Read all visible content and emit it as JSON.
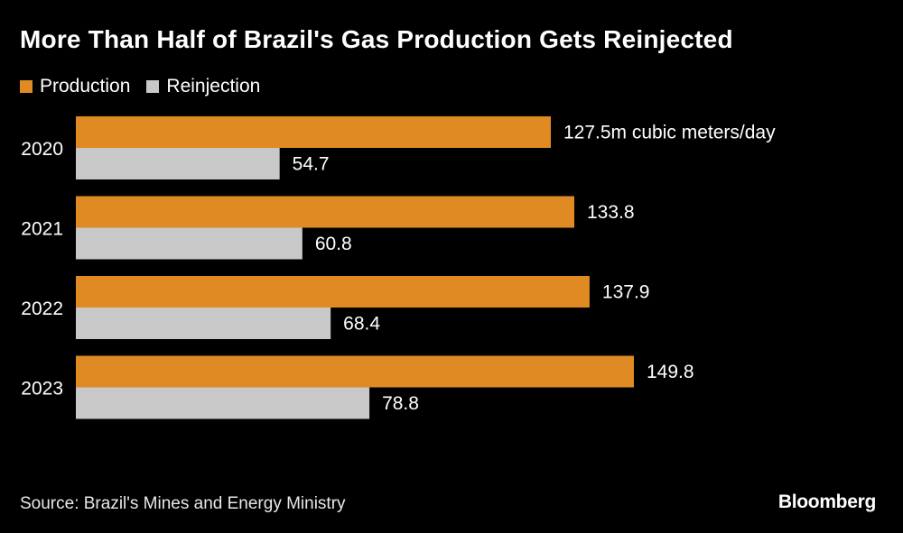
{
  "title": "More Than Half of Brazil's Gas Production Gets Reinjected",
  "colors": {
    "production": "#e08a24",
    "reinjection": "#c8c8c8",
    "background": "#000000"
  },
  "chart_data": {
    "type": "bar",
    "orientation": "horizontal",
    "title": "More Than Half of Brazil's Gas Production Gets Reinjected",
    "categories": [
      "2020",
      "2021",
      "2022",
      "2023"
    ],
    "series": [
      {
        "name": "Production",
        "values": [
          127.5,
          133.8,
          137.9,
          149.8
        ],
        "labels": [
          "127.5m cubic meters/day",
          "133.8",
          "137.9",
          "149.8"
        ]
      },
      {
        "name": "Reinjection",
        "values": [
          54.7,
          60.8,
          68.4,
          78.8
        ],
        "labels": [
          "54.7",
          "60.8",
          "68.4",
          "78.8"
        ]
      }
    ],
    "xlim": [
      0,
      160
    ],
    "legend_position": "top-left",
    "grid": false
  },
  "source": "Source: Brazil's Mines and Energy Ministry",
  "brand": "Bloomberg"
}
